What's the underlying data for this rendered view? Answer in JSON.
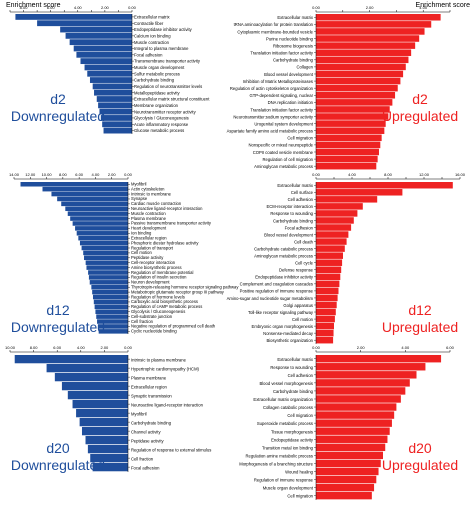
{
  "figure": {
    "axis_caption_left": "Enrichment score",
    "axis_caption_right": "Enrichment score"
  },
  "chart_data": [
    {
      "type": "bar",
      "orientation": "horizontal",
      "direction": "left",
      "panel_label_lines": [
        "d2",
        "Downregulated"
      ],
      "color": "#1f4e9c",
      "label_color": "#1f4e9c",
      "xlim": [
        0,
        9
      ],
      "ticks": [
        0,
        1,
        2,
        3,
        4,
        5,
        6,
        7,
        8,
        9
      ],
      "tick_labels": [
        "0.00",
        "1.00",
        "2.00",
        "3.00",
        "4.00",
        "5.00",
        "6.00",
        "7.00",
        "8.00",
        "9.00"
      ],
      "labeled_tick_every": 2,
      "categories": [
        "Extracellular matrix",
        "Contractile fiber",
        "Endopeptidase inhibitor activity",
        "Calcium ion binding",
        "Muscle contraction",
        "Integral to plasma membrane",
        "Focal adhesion",
        "Transmembrane transporter activity",
        "Muscle organ development",
        "Sulfur metabolic process",
        "Carbohydrate binding",
        "Regulation of neurotransmitter levels",
        "Metallopeptidase activity",
        "Extracellular matrix structural constituent",
        "Membrane organization",
        "Neurotransmitter receptor activity",
        "Glycolysis / Gluconeogenesis",
        "Acute inflammatory response",
        "Glucose metabolic process"
      ],
      "values": [
        8.6,
        7.0,
        5.3,
        4.9,
        4.6,
        4.3,
        4.1,
        3.8,
        3.5,
        3.3,
        3.1,
        2.9,
        2.8,
        2.6,
        2.5,
        2.4,
        2.3,
        2.2,
        2.1
      ]
    },
    {
      "type": "bar",
      "orientation": "horizontal",
      "direction": "right",
      "panel_label_lines": [
        "d2",
        "Upregulated"
      ],
      "color": "#ee2222",
      "label_color": "#ee2222",
      "xlim": [
        0,
        5
      ],
      "ticks": [
        0,
        1,
        2,
        3,
        4,
        5
      ],
      "tick_labels": [
        "0.00",
        "1.00",
        "2.00",
        "3.00",
        "4.00",
        "5.00"
      ],
      "labeled_tick_every": 2,
      "categories": [
        "Extracellular matrix",
        "tRNA aminoacylation for protein translation",
        "Cytoplasmic membrane-bounded vesicle",
        "Purine nucleotide binding",
        "Ribosome biogenesis",
        "Translation initiation factor activity",
        "Carbohydrate binding",
        "Collagen",
        "Blood vessel development",
        "Inhibition of Matrix Metalloproteinases",
        "Regulation of actin cytoskeleton organization",
        "GTP-dependent signaling, nuclear",
        "DNA replication initiation",
        "Translation initiation factor activity",
        "Neurotransmitter:sodium symporter activity",
        "Urogenital system development",
        "Aspartate family amino acid metabolic process",
        "Cell migration",
        "Nonspecific or mixed neuropeptide",
        "COPII coated vesicle membrane",
        "Regulation of cell migration",
        "Aminoglycan metabolic process"
      ],
      "values": [
        4.65,
        4.3,
        4.05,
        3.85,
        3.7,
        3.55,
        3.45,
        3.35,
        3.25,
        3.15,
        3.05,
        2.95,
        2.85,
        2.75,
        2.7,
        2.6,
        2.55,
        2.45,
        2.4,
        2.35,
        2.3,
        2.25
      ]
    },
    {
      "type": "bar",
      "orientation": "horizontal",
      "direction": "left",
      "panel_label_lines": [
        "d12",
        "Downregulated"
      ],
      "color": "#1f4e9c",
      "label_color": "#1f4e9c",
      "xlim": [
        0,
        14
      ],
      "ticks": [
        0,
        2,
        4,
        6,
        8,
        10,
        12,
        14
      ],
      "tick_labels": [
        "0.00",
        "2.00",
        "4.00",
        "6.00",
        "8.00",
        "10.00",
        "12.00",
        "14.00"
      ],
      "labeled_tick_every": 1,
      "categories": [
        "Myofibril",
        "Actin cytoskeleton",
        "Intrinsic to membrane",
        "Synapse",
        "Cardiac muscle contraction",
        "Neuroactive ligand-receptor interaction",
        "Muscle contraction",
        "Plasma membrane",
        "Passive transmembrane transporter activity",
        "Heart development",
        "Ion binding",
        "Extracellular region",
        "Phosphoric diester hydrolase activity",
        "Regulation of transport",
        "Cell motion",
        "Peptidase activity",
        "Cell-receptor interaction",
        "Amine biosynthetic process",
        "Regulation of membrane potential",
        "Regulation of insulin secretion",
        "Neuron development",
        "Thyrotropin-releasing hormone receptor signaling pathway",
        "Metabotropic glutamate receptor group III pathway",
        "Regulation of hormone levels",
        "Carboxylic acid biosynthetic process",
        "Regulation of cAMP metabolic process",
        "Glycolysis / Gluconeogenesis",
        "Cell-substrate junction",
        "Cell fraction",
        "Negative regulation of programmed cell death",
        "Cyclic nucleotide binding"
      ],
      "values": [
        13.2,
        10.5,
        9.4,
        8.7,
        8.2,
        7.7,
        7.4,
        7.1,
        6.8,
        6.5,
        6.3,
        6.1,
        5.9,
        5.7,
        5.5,
        5.4,
        5.2,
        5.1,
        4.9,
        4.8,
        4.7,
        4.5,
        4.4,
        4.3,
        4.2,
        4.1,
        4.0,
        3.9,
        3.8,
        3.7,
        3.6
      ]
    },
    {
      "type": "bar",
      "orientation": "horizontal",
      "direction": "right",
      "panel_label_lines": [
        "d12",
        "Upregulated"
      ],
      "color": "#ee2222",
      "label_color": "#ee2222",
      "xlim": [
        0,
        16
      ],
      "ticks": [
        0,
        2,
        4,
        6,
        8,
        10,
        12,
        14,
        16
      ],
      "tick_labels": [
        "0.00",
        "2.00",
        "4.00",
        "6.00",
        "8.00",
        "10.00",
        "12.00",
        "14.00",
        "16.00"
      ],
      "labeled_tick_every": 2,
      "categories": [
        "Extracellular matrix",
        "Cell surface",
        "Cell adhesion",
        "ECM-receptor interaction",
        "Response to wounding",
        "Carbohydrate binding",
        "Focal adhesion",
        "Blood vessel development",
        "Cell death",
        "Carbohydrate catabolic process",
        "Aminoglycan metabolic process",
        "Cell cycle",
        "Defense response",
        "Endopeptidase inhibitor activity",
        "Complement and coagulation cascades",
        "Positive regulation of immune response",
        "Amino-sugar and nucleotide sugar metabolism",
        "Golgi apparatus",
        "Toll-like receptor signaling pathway",
        "Cell motion",
        "Embryonic organ morphogenesis",
        "Nonsense-mediated decay",
        "Biosynthetic organization"
      ],
      "values": [
        15.2,
        9.6,
        6.8,
        5.2,
        4.6,
        4.2,
        3.9,
        3.6,
        3.4,
        3.2,
        3.0,
        2.9,
        2.8,
        2.7,
        2.6,
        2.5,
        2.4,
        2.3,
        2.2,
        2.1,
        2.0,
        1.95,
        1.9
      ]
    },
    {
      "type": "bar",
      "orientation": "horizontal",
      "direction": "left",
      "panel_label_lines": [
        "d20",
        "Downregulated"
      ],
      "color": "#1f4e9c",
      "label_color": "#1f4e9c",
      "xlim": [
        0,
        10
      ],
      "ticks": [
        0,
        2,
        4,
        6,
        8,
        10
      ],
      "tick_labels": [
        "0.00",
        "2.00",
        "4.00",
        "6.00",
        "8.00",
        "10.00"
      ],
      "labeled_tick_every": 1,
      "categories": [
        "Intrinsic to plasma membrane",
        "Hypertrophic cardiomyopathy (HCM)",
        "Plasma membrane",
        "Extracellular region",
        "Synaptic transmission",
        "Neuroactive ligand-receptor interaction",
        "Myofibril",
        "Carbohydrate binding",
        "Channel activity",
        "Peptidase activity",
        "Regulation of response to external stimulus",
        "Cell fraction",
        "Focal adhesion"
      ],
      "values": [
        9.6,
        6.9,
        6.2,
        5.6,
        5.1,
        4.7,
        4.4,
        4.1,
        3.9,
        3.6,
        3.4,
        3.2,
        3.0
      ]
    },
    {
      "type": "bar",
      "orientation": "horizontal",
      "direction": "right",
      "panel_label_lines": [
        "d20",
        "Upregulated"
      ],
      "color": "#ee2222",
      "label_color": "#ee2222",
      "xlim": [
        0,
        6
      ],
      "ticks": [
        0,
        2,
        4,
        6
      ],
      "tick_labels": [
        "0.00",
        "2.00",
        "4.00",
        "6.00"
      ],
      "labeled_tick_every": 1,
      "categories": [
        "Extracellular matrix",
        "Response to wounding",
        "Cell adhesion",
        "Blood vessel morphogenesis",
        "Carbohydrate binding",
        "Extracellular matrix organization",
        "Collagen catabolic process",
        "Cell migration",
        "Superoxide metabolic process",
        "Tissue morphogenesis",
        "Endopeptidase activity",
        "Transition metal ion binding",
        "Regulation amine metabolic process",
        "Morphogenesis of a branching structure",
        "Wound healing",
        "Regulation of immune response",
        "Muscle organ development",
        "Cell migration"
      ],
      "values": [
        5.6,
        4.9,
        4.5,
        4.2,
        4.0,
        3.8,
        3.6,
        3.5,
        3.4,
        3.3,
        3.2,
        3.1,
        3.0,
        2.9,
        2.8,
        2.7,
        2.6,
        2.5
      ]
    }
  ]
}
